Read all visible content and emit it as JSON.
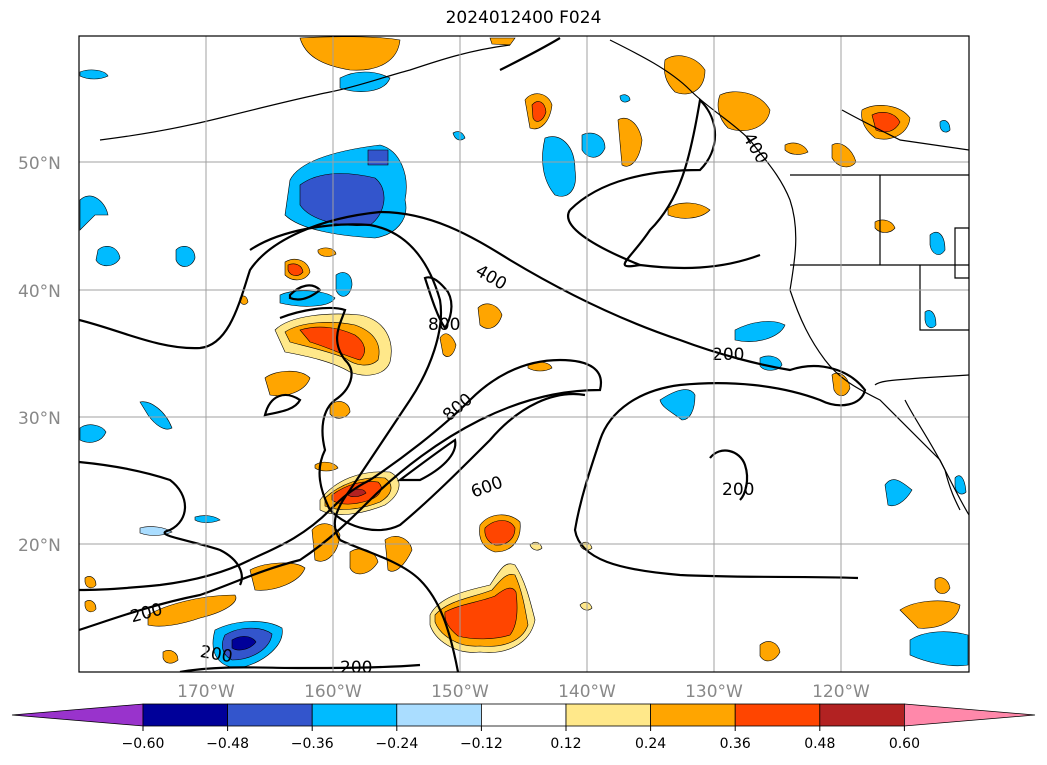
{
  "title": "2024012400 F024",
  "lat_labels": [
    "50°N",
    "40°N",
    "30°N",
    "20°N"
  ],
  "lon_labels": [
    "170°W",
    "160°W",
    "150°W",
    "140°W",
    "130°W",
    "120°W"
  ],
  "contour_labels": [
    "400",
    "800",
    "800",
    "600",
    "200",
    "200",
    "200",
    "200",
    "200",
    "400"
  ],
  "colorbar": {
    "ticks": [
      "−0.60",
      "−0.48",
      "−0.36",
      "−0.24",
      "−0.12",
      "0.12",
      "0.24",
      "0.36",
      "0.48",
      "0.60"
    ],
    "colors": [
      "#9933cc",
      "#000099",
      "#3355cc",
      "#00bbff",
      "#aaddff",
      "#ffffff",
      "#ffe88a",
      "#ffa500",
      "#ff4500",
      "#b22222",
      "#ff88aa"
    ]
  }
}
